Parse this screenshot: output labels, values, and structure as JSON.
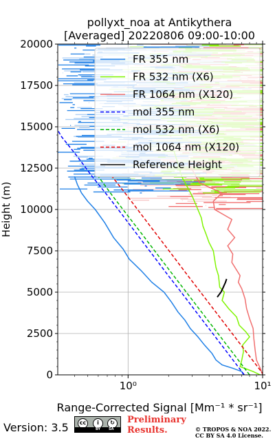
{
  "chart_data": {
    "type": "line",
    "title": "pollyxt_noa at Antikythera",
    "subtitle": "[Averaged] 20220806 09:00-10:00",
    "xlabel": "Range-Corrected Signal [Mm⁻¹ * sr⁻¹]",
    "ylabel": "Height (m)",
    "xscale": "log",
    "xlim": [
      0.3,
      10
    ],
    "ylim": [
      0,
      20000
    ],
    "xticks": [
      "10⁰",
      "10¹"
    ],
    "yticks": [
      0,
      2500,
      5000,
      7500,
      10000,
      12500,
      15000,
      17500,
      20000
    ],
    "grid": true,
    "legend_position": "top-right",
    "series": [
      {
        "name": "FR 355 nm",
        "color": "#1e7fe6",
        "style": "solid",
        "points": [
          [
            7.2,
            0
          ],
          [
            7.0,
            200
          ],
          [
            6.0,
            400
          ],
          [
            5.0,
            600
          ],
          [
            4.5,
            900
          ],
          [
            4.2,
            1300
          ],
          [
            3.7,
            1800
          ],
          [
            3.3,
            2300
          ],
          [
            2.9,
            2800
          ],
          [
            2.65,
            3300
          ],
          [
            2.35,
            3800
          ],
          [
            2.1,
            4400
          ],
          [
            1.85,
            5000
          ],
          [
            1.5,
            5600
          ],
          [
            1.25,
            6300
          ],
          [
            1.02,
            7000
          ],
          [
            0.92,
            7600
          ],
          [
            0.78,
            8300
          ],
          [
            0.67,
            9200
          ],
          [
            0.57,
            10000
          ],
          [
            0.5,
            10500
          ],
          [
            0.45,
            11000
          ],
          [
            0.42,
            11500
          ],
          [
            0.4,
            12000
          ]
        ]
      },
      {
        "name": "FR 532 nm (X6)",
        "color": "#7ff400",
        "style": "solid",
        "points": [
          [
            9.6,
            0
          ],
          [
            8.5,
            200
          ],
          [
            6.8,
            500
          ],
          [
            7.0,
            900
          ],
          [
            7.2,
            1400
          ],
          [
            7.1,
            1800
          ],
          [
            8.0,
            2300
          ],
          [
            7.5,
            2600
          ],
          [
            6.7,
            3000
          ],
          [
            6.4,
            3500
          ],
          [
            5.6,
            4000
          ],
          [
            5.0,
            4500
          ],
          [
            5.2,
            5000
          ],
          [
            4.8,
            5300
          ],
          [
            4.7,
            6000
          ],
          [
            4.5,
            6500
          ],
          [
            4.4,
            7000
          ],
          [
            4.3,
            7500
          ],
          [
            4.0,
            8000
          ],
          [
            3.8,
            8500
          ],
          [
            3.6,
            9000
          ],
          [
            3.5,
            9500
          ],
          [
            3.3,
            10000
          ],
          [
            3.0,
            10800
          ],
          [
            2.7,
            11500
          ],
          [
            2.5,
            12000
          ],
          [
            2.4,
            12500
          ],
          [
            2.3,
            13000
          ],
          [
            2.2,
            13500
          ]
        ]
      },
      {
        "name": "FR 1064 nm (X120)",
        "color": "#f06e6e",
        "style": "solid",
        "points": [
          [
            10.0,
            0
          ],
          [
            9.6,
            400
          ],
          [
            9.0,
            900
          ],
          [
            8.8,
            1500
          ],
          [
            8.6,
            2200
          ],
          [
            8.5,
            2800
          ],
          [
            8.0,
            3400
          ],
          [
            7.6,
            4000
          ],
          [
            7.4,
            4600
          ],
          [
            7.0,
            5200
          ],
          [
            6.6,
            5600
          ],
          [
            6.8,
            6000
          ],
          [
            5.9,
            6800
          ],
          [
            6.0,
            7300
          ],
          [
            5.5,
            7800
          ],
          [
            6.2,
            8300
          ],
          [
            5.5,
            8800
          ],
          [
            5.9,
            9400
          ],
          [
            4.4,
            10000
          ],
          [
            4.3,
            10500
          ],
          [
            5.0,
            11000
          ],
          [
            3.4,
            11600
          ],
          [
            3.1,
            12200
          ],
          [
            2.8,
            12800
          ]
        ]
      },
      {
        "name": "mol 355 nm",
        "color": "#0000ff",
        "style": "dashed",
        "points": [
          [
            7.3,
            0
          ],
          [
            5.64,
            1200
          ],
          [
            4.35,
            2400
          ],
          [
            3.35,
            3600
          ],
          [
            2.59,
            4800
          ],
          [
            1.99,
            6000
          ],
          [
            1.54,
            7200
          ],
          [
            1.19,
            8400
          ],
          [
            0.92,
            9600
          ],
          [
            0.71,
            10800
          ],
          [
            0.54,
            12000
          ],
          [
            0.42,
            13200
          ],
          [
            0.32,
            14400
          ],
          [
            0.3,
            14800
          ]
        ]
      },
      {
        "name": "mol 532 nm (X6)",
        "color": "#00b400",
        "style": "dashed",
        "points": [
          [
            8.0,
            0
          ],
          [
            6.17,
            1200
          ],
          [
            4.76,
            2400
          ],
          [
            3.67,
            3600
          ],
          [
            2.83,
            4800
          ],
          [
            2.18,
            6000
          ],
          [
            1.68,
            7200
          ],
          [
            1.3,
            8400
          ],
          [
            1.0,
            9600
          ],
          [
            0.77,
            10800
          ],
          [
            0.6,
            12000
          ]
        ]
      },
      {
        "name": "mol 1064 nm (X120)",
        "color": "#e00000",
        "style": "dashed",
        "points": [
          [
            10.2,
            0
          ],
          [
            7.87,
            1200
          ],
          [
            6.07,
            2400
          ],
          [
            4.68,
            3600
          ],
          [
            3.61,
            4800
          ],
          [
            2.78,
            6000
          ],
          [
            2.15,
            7200
          ],
          [
            1.66,
            8400
          ],
          [
            1.28,
            9600
          ],
          [
            0.99,
            10800
          ],
          [
            0.76,
            12000
          ]
        ]
      },
      {
        "name": "Reference Height",
        "color": "#000000",
        "style": "solid",
        "points": [
          [
            4.6,
            4700
          ],
          [
            4.9,
            5000
          ],
          [
            5.1,
            5300
          ],
          [
            5.3,
            5600
          ],
          [
            5.4,
            5800
          ]
        ]
      }
    ]
  },
  "footer": {
    "version": "Version: 3.5",
    "cc_by": "BY",
    "cc_sa": "SA",
    "preliminary": "Preliminary",
    "results": "Results.",
    "copyright1": "© TROPOS & NOA 2022.",
    "copyright2": "CC BY SA 4.0 License."
  }
}
